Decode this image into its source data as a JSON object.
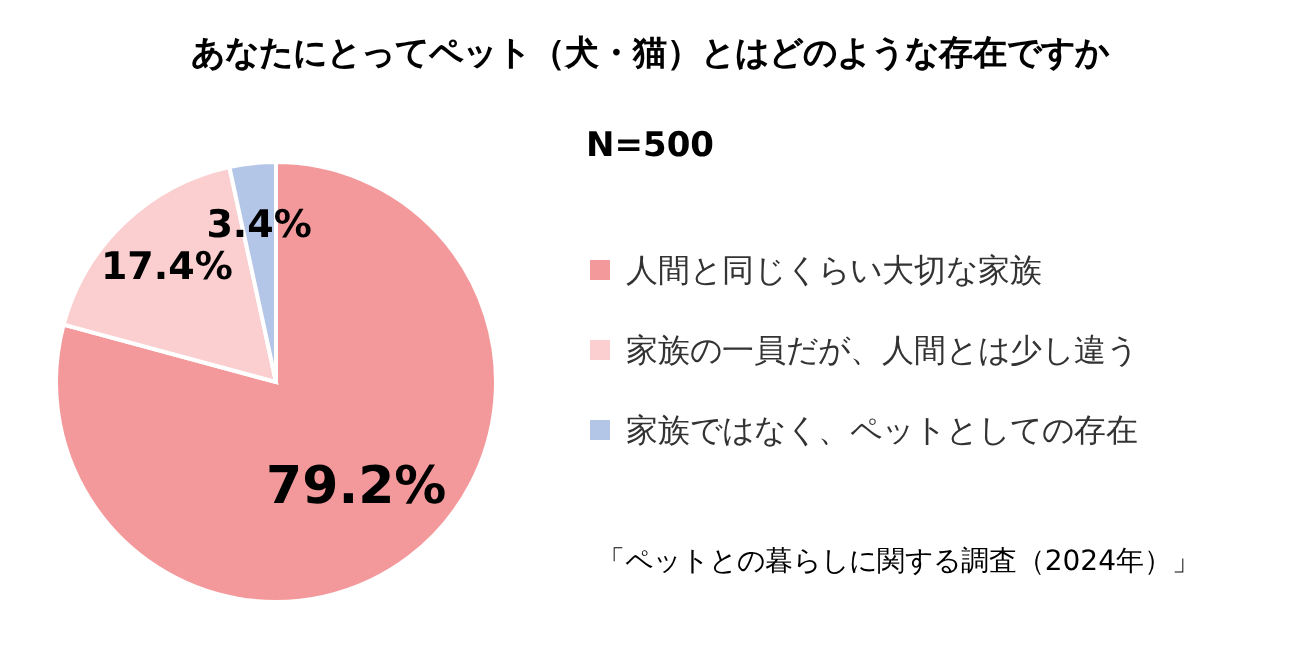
{
  "chart_data": {
    "type": "pie",
    "title": "あなたにとってペット（犬・猫）とはどのような存在ですか",
    "subtitle": "N=500",
    "categories": [
      "人間と同じくらい大切な家族",
      "家族の一員だが、人間とは少し違う",
      "家族ではなく、ペットとしての存在"
    ],
    "values": [
      79.2,
      17.4,
      3.4
    ],
    "colors": [
      "#f4999b",
      "#fbcfcf",
      "#b4c6e7"
    ],
    "value_labels": [
      "79.2%",
      "17.4%",
      "3.4%"
    ],
    "legend": "right",
    "annotations": [
      "「ペットとの暮らしに関する調査（2024年）」"
    ]
  }
}
